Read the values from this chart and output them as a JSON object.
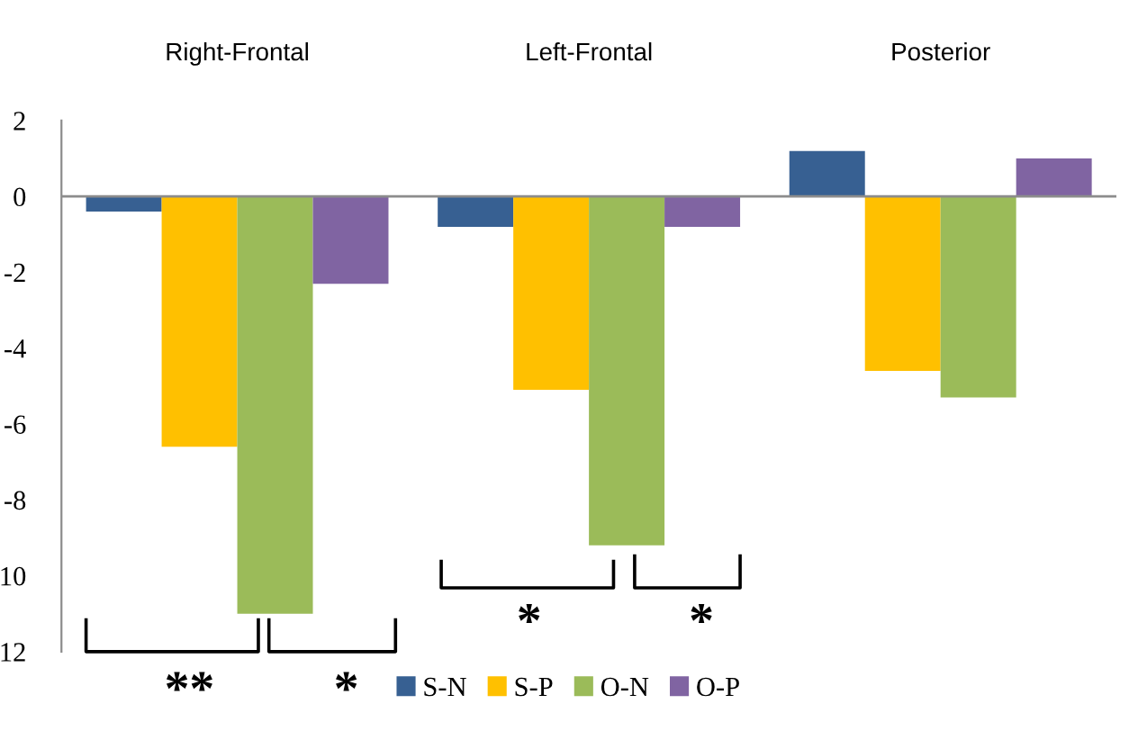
{
  "chart_data": {
    "type": "bar",
    "categories": [
      "Right-Frontal",
      "Left-Frontal",
      "Posterior"
    ],
    "series": [
      {
        "name": "S-N",
        "color": "#376092",
        "values": [
          -0.4,
          -0.8,
          1.2
        ]
      },
      {
        "name": "S-P",
        "color": "#ffc000",
        "values": [
          -6.6,
          -5.1,
          -4.6
        ]
      },
      {
        "name": "O-N",
        "color": "#9bbb59",
        "values": [
          -11.0,
          -9.2,
          -5.3
        ]
      },
      {
        "name": "O-P",
        "color": "#8064a2",
        "values": [
          -2.3,
          -0.8,
          1.0
        ]
      }
    ],
    "ylim": [
      -12,
      2
    ],
    "yticks": [
      2,
      0,
      -2,
      -4,
      -6,
      -8,
      {
        "value": -10,
        "label": "10"
      },
      {
        "value": -12,
        "label": "12"
      }
    ],
    "annotations": [
      "**",
      "*",
      "*",
      "*"
    ],
    "ref_lines": [
      {
        "axis": "y",
        "value": 0,
        "color": "#8c8c8c"
      }
    ],
    "legend": "bottom",
    "grid": false
  }
}
